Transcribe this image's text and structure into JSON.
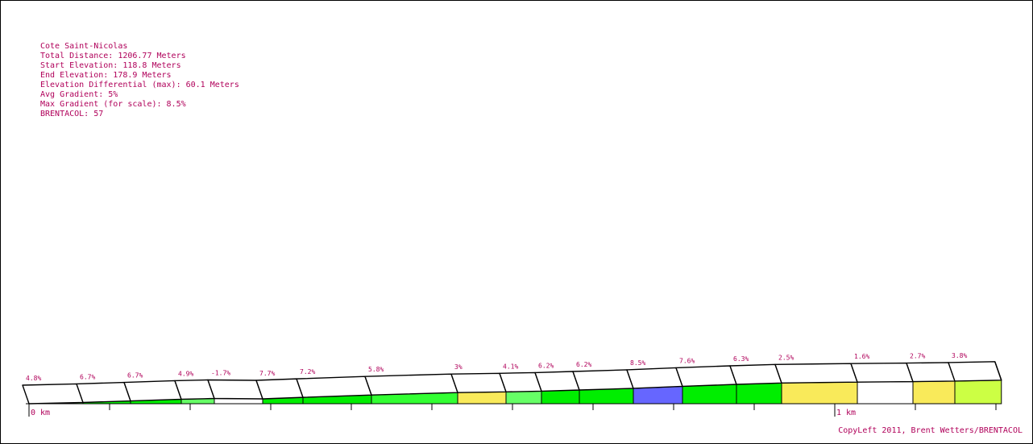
{
  "info": {
    "title": "Cote Saint-Nicolas",
    "lines": [
      "Total Distance: 1206.77 Meters",
      "Start Elevation: 118.8 Meters",
      "End Elevation: 178.9 Meters",
      "Elevation Differential (max): 60.1 Meters",
      "Avg Gradient: 5%",
      "Max Gradient (for scale): 8.5%",
      "BRENTACOL: 57"
    ]
  },
  "footer": "CopyLeft 2011, Brent Wetters/BRENTACOL",
  "chart_data": {
    "type": "area",
    "title": "Cote Saint-Nicolas",
    "xlabel": "",
    "ylabel": "",
    "x_unit": "km",
    "xlim": [
      0,
      1.20677
    ],
    "x_tick_labels": [
      {
        "x": 0,
        "label": "0 km"
      },
      {
        "x": 1,
        "label": "1 km"
      }
    ],
    "minor_tick_step_km": 0.1,
    "elevation_range_m": [
      118.8,
      178.9
    ],
    "segments": [
      {
        "start_km": 0.0,
        "end_km": 0.067,
        "gradient": "4.8%",
        "color": "#66ff66"
      },
      {
        "start_km": 0.067,
        "end_km": 0.126,
        "gradient": "6.7%",
        "color": "#00ee00"
      },
      {
        "start_km": 0.126,
        "end_km": 0.189,
        "gradient": "6.7%",
        "color": "#00ee00"
      },
      {
        "start_km": 0.189,
        "end_km": 0.23,
        "gradient": "4.9%",
        "color": "#66ff66"
      },
      {
        "start_km": 0.23,
        "end_km": 0.29,
        "gradient": "-1.7%",
        "color": "#ffffff"
      },
      {
        "start_km": 0.29,
        "end_km": 0.34,
        "gradient": "7.7%",
        "color": "#00ee00"
      },
      {
        "start_km": 0.34,
        "end_km": 0.425,
        "gradient": "7.2%",
        "color": "#00ee00"
      },
      {
        "start_km": 0.425,
        "end_km": 0.532,
        "gradient": "5.8%",
        "color": "#33ff33"
      },
      {
        "start_km": 0.532,
        "end_km": 0.592,
        "gradient": "3%",
        "color": "#f9ea5a"
      },
      {
        "start_km": 0.592,
        "end_km": 0.636,
        "gradient": "4.1%",
        "color": "#66ff66"
      },
      {
        "start_km": 0.636,
        "end_km": 0.683,
        "gradient": "6.2%",
        "color": "#00ee00"
      },
      {
        "start_km": 0.683,
        "end_km": 0.75,
        "gradient": "6.2%",
        "color": "#00ee00"
      },
      {
        "start_km": 0.75,
        "end_km": 0.811,
        "gradient": "8.5%",
        "color": "#6666ff"
      },
      {
        "start_km": 0.811,
        "end_km": 0.878,
        "gradient": "7.6%",
        "color": "#00ee00"
      },
      {
        "start_km": 0.878,
        "end_km": 0.934,
        "gradient": "6.3%",
        "color": "#00ee00"
      },
      {
        "start_km": 0.934,
        "end_km": 1.028,
        "gradient": "2.5%",
        "color": "#f9ea5a"
      },
      {
        "start_km": 1.028,
        "end_km": 1.097,
        "gradient": "1.6%",
        "color": "#ffffff"
      },
      {
        "start_km": 1.097,
        "end_km": 1.149,
        "gradient": "2.7%",
        "color": "#f9ea5a"
      },
      {
        "start_km": 1.149,
        "end_km": 1.20677,
        "gradient": "3.8%",
        "color": "#ccff44"
      }
    ]
  }
}
